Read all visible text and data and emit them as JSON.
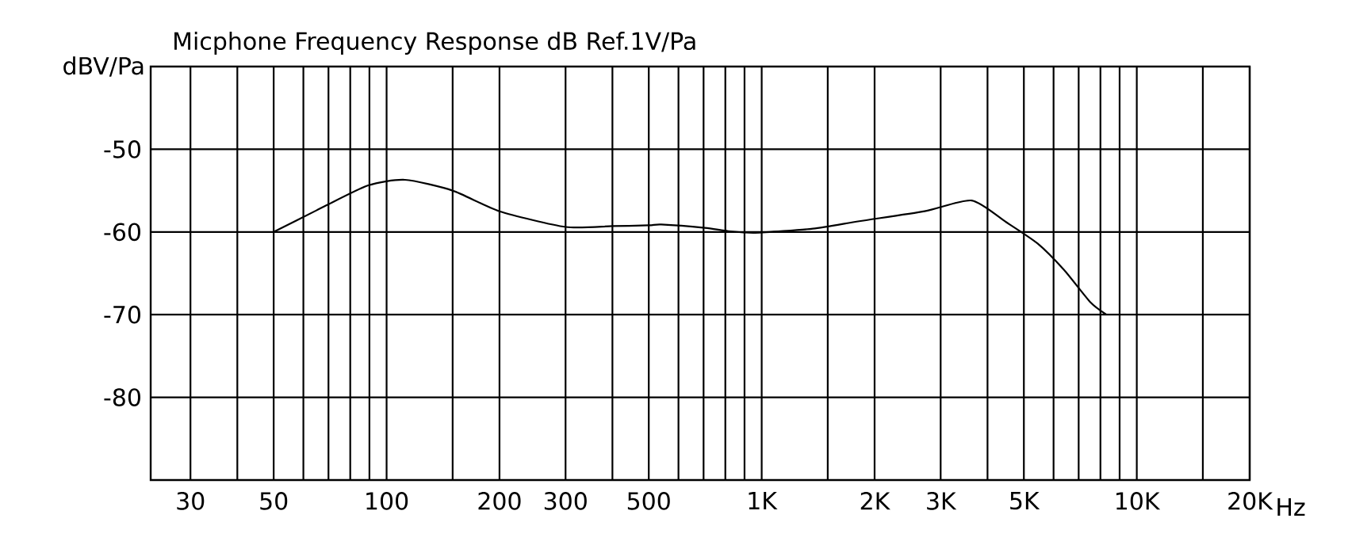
{
  "chart_data": {
    "type": "line",
    "title": "Micphone Frequency Response dB Ref.1V/Pa",
    "ylabel": "dBV/Pa",
    "log": "x",
    "x": [
      50,
      65,
      89,
      112,
      150,
      200,
      300,
      400,
      500,
      540,
      705,
      814,
      962,
      1370,
      1820,
      2720,
      3630,
      4480,
      5440,
      6400,
      7520,
      8300
    ],
    "series": [
      {
        "color": "#000000",
        "values": [
          -60,
          -57.4,
          -54.4,
          -53.7,
          -55,
          -57.5,
          -59.4,
          -59.3,
          -59.2,
          -59.1,
          -59.5,
          -59.9,
          -60.1,
          -59.6,
          -58.7,
          -57.5,
          -56.2,
          -58.8,
          -61.4,
          -64.6,
          -68.5,
          -70
        ]
      }
    ],
    "xlim": [
      23.5,
      20000
    ],
    "xticks": [
      {
        "value": 30,
        "label": "30"
      },
      {
        "value": 40,
        "label": null
      },
      {
        "value": 50,
        "label": "50"
      },
      {
        "value": 60,
        "label": null
      },
      {
        "value": 70,
        "label": null
      },
      {
        "value": 80,
        "label": null
      },
      {
        "value": 90,
        "label": null
      },
      {
        "value": 100,
        "label": "100"
      },
      {
        "value": 150,
        "label": null
      },
      {
        "value": 200,
        "label": "200"
      },
      {
        "value": 300,
        "label": "300"
      },
      {
        "value": 400,
        "label": null
      },
      {
        "value": 500,
        "label": "500"
      },
      {
        "value": 600,
        "label": null
      },
      {
        "value": 700,
        "label": null
      },
      {
        "value": 800,
        "label": null
      },
      {
        "value": 900,
        "label": null
      },
      {
        "value": 1000,
        "label": "1K"
      },
      {
        "value": 1500,
        "label": null
      },
      {
        "value": 2000,
        "label": "2K"
      },
      {
        "value": 3000,
        "label": "3K"
      },
      {
        "value": 4000,
        "label": null
      },
      {
        "value": 5000,
        "label": "5K"
      },
      {
        "value": 6000,
        "label": null
      },
      {
        "value": 7000,
        "label": null
      },
      {
        "value": 8000,
        "label": null
      },
      {
        "value": 9000,
        "label": null
      },
      {
        "value": 10000,
        "label": "10K"
      },
      {
        "value": 15000,
        "label": null
      },
      {
        "value": 20000,
        "label": "20K"
      }
    ],
    "xlabel": "Hz",
    "ylim": [
      -90,
      -40
    ],
    "yticks": [
      -50,
      -60,
      -70,
      -80
    ],
    "grid": true
  }
}
